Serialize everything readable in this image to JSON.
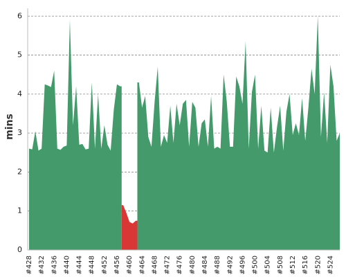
{
  "chart_data": {
    "type": "area",
    "y_label": "mins",
    "categories": [
      "#428",
      null,
      null,
      null,
      "#432",
      null,
      null,
      null,
      "#436",
      null,
      null,
      null,
      "#440",
      null,
      null,
      null,
      "#444",
      null,
      null,
      null,
      "#448",
      null,
      null,
      null,
      "#452",
      null,
      null,
      null,
      "#456",
      null,
      null,
      null,
      "#460",
      null,
      null,
      null,
      "#464",
      null,
      null,
      null,
      "#468",
      null,
      null,
      null,
      "#472",
      null,
      null,
      null,
      "#476",
      null,
      null,
      null,
      "#480",
      null,
      null,
      null,
      "#484",
      null,
      null,
      null,
      "#488",
      null,
      null,
      null,
      "#492",
      null,
      null,
      null,
      "#496",
      null,
      null,
      null,
      "#500",
      null,
      null,
      null,
      "#504",
      null,
      null,
      null,
      "#508",
      null,
      null,
      null,
      "#512",
      null,
      null,
      null,
      "#516",
      null,
      null,
      null,
      "#520",
      null,
      null,
      null,
      "#524",
      null,
      null,
      null
    ],
    "series": [
      {
        "color": "#459a6c",
        "values": [
          2.6,
          2.58,
          3.05,
          2.55,
          2.6,
          4.25,
          4.22,
          4.18,
          4.6,
          2.6,
          2.57,
          2.65,
          2.68,
          5.9,
          3.2,
          4.2,
          2.7,
          2.72,
          2.58,
          2.6,
          4.3,
          2.6,
          4.0,
          2.6,
          3.2,
          2.7,
          2.55,
          3.6,
          4.25,
          4.2,
          null,
          null,
          null,
          null,
          null,
          4.3,
          3.65,
          3.95,
          2.9,
          2.65,
          3.8,
          4.7,
          2.65,
          2.95,
          2.75,
          3.7,
          2.75,
          3.75,
          3.2,
          3.75,
          3.85,
          2.65,
          3.8,
          3.65,
          2.65,
          3.25,
          3.35,
          2.65,
          3.95,
          2.6,
          2.65,
          2.6,
          4.5,
          3.8,
          2.65,
          2.65,
          4.45,
          4.2,
          3.75,
          5.35,
          2.6,
          4.05,
          4.5,
          2.6,
          3.7,
          2.55,
          2.5,
          3.65,
          2.5,
          3.15,
          3.7,
          2.55,
          3.55,
          4.0,
          2.95,
          3.25,
          2.95,
          3.9,
          2.8,
          3.65,
          4.65,
          4.0,
          6.0,
          2.9,
          4.05,
          2.75,
          4.75,
          4.2,
          2.8,
          3.0
        ]
      },
      {
        "color": "#d93636",
        "values": [
          null,
          null,
          null,
          null,
          null,
          null,
          null,
          null,
          null,
          null,
          null,
          null,
          null,
          null,
          null,
          null,
          null,
          null,
          null,
          null,
          null,
          null,
          null,
          null,
          null,
          null,
          null,
          null,
          null,
          null,
          1.15,
          0.95,
          0.72,
          0.68,
          0.75,
          null,
          null,
          null,
          null,
          null,
          null,
          null,
          null,
          null,
          null,
          null,
          null,
          null,
          null,
          null,
          null,
          null,
          null,
          null,
          null,
          null,
          null,
          null,
          null,
          null,
          null,
          null,
          null,
          null,
          null,
          null,
          null,
          null,
          null,
          null,
          null,
          null,
          null,
          null,
          null,
          null,
          null,
          null,
          null,
          null,
          null,
          null,
          null,
          null,
          null,
          null,
          null,
          null,
          null,
          null,
          null,
          null,
          null,
          null,
          null,
          null,
          null,
          null,
          null,
          null
        ]
      }
    ],
    "ylim": [
      0,
      6.2
    ],
    "yticks": [
      0,
      1,
      2,
      3,
      4,
      5,
      6
    ],
    "grid": true
  }
}
